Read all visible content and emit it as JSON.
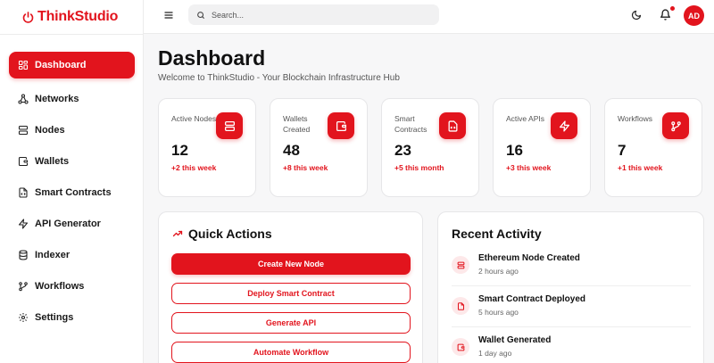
{
  "brand": {
    "name": "ThinkStudio",
    "accent": "#e2141d"
  },
  "sidebar": {
    "items": [
      {
        "label": "Dashboard",
        "icon": "dashboard-icon",
        "active": true
      },
      {
        "label": "Networks",
        "icon": "network-icon"
      },
      {
        "label": "Nodes",
        "icon": "server-icon"
      },
      {
        "label": "Wallets",
        "icon": "wallet-icon"
      },
      {
        "label": "Smart Contracts",
        "icon": "file-code-icon"
      },
      {
        "label": "API Generator",
        "icon": "lightning-icon"
      },
      {
        "label": "Indexer",
        "icon": "database-icon"
      },
      {
        "label": "Workflows",
        "icon": "workflow-icon"
      },
      {
        "label": "Settings",
        "icon": "gear-icon"
      }
    ]
  },
  "topbar": {
    "search_placeholder": "Search...",
    "avatar_initials": "AD"
  },
  "header": {
    "title": "Dashboard",
    "subtitle": "Welcome to ThinkStudio - Your Blockchain Infrastructure Hub"
  },
  "stats": [
    {
      "label": "Active Nodes",
      "value": "12",
      "change": "+2 this week",
      "icon": "server-icon"
    },
    {
      "label": "Wallets Created",
      "value": "48",
      "change": "+8 this week",
      "icon": "wallet-icon"
    },
    {
      "label": "Smart Contracts",
      "value": "23",
      "change": "+5 this month",
      "icon": "file-code-icon"
    },
    {
      "label": "Active APIs",
      "value": "16",
      "change": "+3 this week",
      "icon": "lightning-icon"
    },
    {
      "label": "Workflows",
      "value": "7",
      "change": "+1 this week",
      "icon": "workflow-icon"
    }
  ],
  "quick_actions": {
    "title": "Quick Actions",
    "buttons": [
      "Create New Node",
      "Deploy Smart Contract",
      "Generate API",
      "Automate Workflow"
    ]
  },
  "recent_activity": {
    "title": "Recent Activity",
    "items": [
      {
        "title": "Ethereum Node Created",
        "time": "2 hours ago",
        "icon": "server-icon"
      },
      {
        "title": "Smart Contract Deployed",
        "time": "5 hours ago",
        "icon": "file-code-icon"
      },
      {
        "title": "Wallet Generated",
        "time": "1 day ago",
        "icon": "wallet-icon"
      }
    ]
  }
}
